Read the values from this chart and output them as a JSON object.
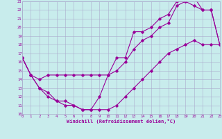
{
  "title": "",
  "xlabel": "Windchill (Refroidissement éolien,°C)",
  "bg_color": "#c8ecec",
  "line_color": "#990099",
  "grid_color": "#aaaacc",
  "line1_x": [
    0,
    1,
    2,
    3,
    4,
    5,
    6,
    7,
    8,
    9,
    10,
    11,
    12,
    13,
    14,
    15,
    16,
    17,
    18,
    19,
    20,
    21,
    22,
    23
  ],
  "line1_y": [
    16.5,
    14.5,
    13.0,
    12.5,
    11.5,
    11.5,
    11.0,
    10.5,
    10.5,
    12.0,
    14.5,
    16.5,
    16.5,
    19.5,
    19.5,
    20.0,
    21.0,
    21.5,
    23.0,
    23.0,
    22.5,
    22.0,
    22.0,
    18.0
  ],
  "line2_x": [
    0,
    1,
    2,
    3,
    4,
    5,
    6,
    7,
    8,
    9,
    10,
    11,
    12,
    13,
    14,
    15,
    16,
    17,
    18,
    19,
    20,
    21,
    22,
    23
  ],
  "line2_y": [
    16.5,
    14.5,
    14.0,
    14.5,
    14.5,
    14.5,
    14.5,
    14.5,
    14.5,
    14.5,
    14.5,
    15.0,
    16.0,
    17.5,
    18.5,
    19.0,
    20.0,
    20.5,
    22.5,
    23.0,
    23.5,
    22.0,
    22.0,
    18.0
  ],
  "line3_x": [
    0,
    1,
    2,
    3,
    4,
    5,
    6,
    7,
    8,
    9,
    10,
    11,
    12,
    13,
    14,
    15,
    16,
    17,
    18,
    19,
    20,
    21,
    22,
    23
  ],
  "line3_y": [
    16.5,
    14.5,
    13.0,
    12.0,
    11.5,
    11.0,
    11.0,
    10.5,
    10.5,
    10.5,
    10.5,
    11.0,
    12.0,
    13.0,
    14.0,
    15.0,
    16.0,
    17.0,
    17.5,
    18.0,
    18.5,
    18.0,
    18.0,
    18.0
  ],
  "xlim": [
    0,
    23
  ],
  "ylim": [
    10,
    23
  ],
  "xticks": [
    0,
    1,
    2,
    3,
    4,
    5,
    6,
    7,
    8,
    9,
    10,
    11,
    12,
    13,
    14,
    15,
    16,
    17,
    18,
    19,
    20,
    21,
    22,
    23
  ],
  "yticks": [
    10,
    11,
    12,
    13,
    14,
    15,
    16,
    17,
    18,
    19,
    20,
    21,
    22,
    23
  ]
}
